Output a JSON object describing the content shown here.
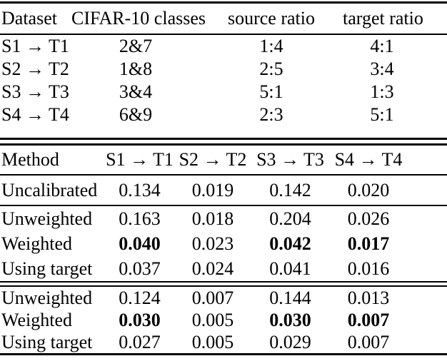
{
  "page": {
    "background_color": "#ffffff",
    "text_color": "#000000"
  },
  "dataset_table": {
    "headers": [
      "Dataset",
      "CIFAR-10 classes",
      "source ratio",
      "target ratio"
    ],
    "rows": [
      [
        "S1 → T1",
        "2&7",
        "1:4",
        "4:1"
      ],
      [
        "S2 → T2",
        "1&8",
        "2:5",
        "3:4"
      ],
      [
        "S3 → T3",
        "3&4",
        "5:1",
        "1:3"
      ],
      [
        "S4 → T4",
        "6&9",
        "2:3",
        "5:1"
      ]
    ]
  },
  "results_table": {
    "headers": [
      "Method",
      "S1 → T1",
      "S2 → T2",
      "S3 → T3",
      "S4 → T4"
    ],
    "group_a": [
      [
        "Uncalibrated",
        "0.134",
        "0.019",
        "0.142",
        "0.020"
      ]
    ],
    "group_b": [
      [
        "Unweighted",
        "0.163",
        "0.018",
        "0.204",
        "0.026"
      ],
      [
        "Weighted",
        "0.040",
        "0.023",
        "0.042",
        "0.017"
      ],
      [
        "Using target",
        "0.037",
        "0.024",
        "0.041",
        "0.016"
      ]
    ],
    "group_c": [
      [
        "Unweighted",
        "0.124",
        "0.007",
        "0.144",
        "0.013"
      ],
      [
        "Weighted",
        "0.030",
        "0.005",
        "0.030",
        "0.007"
      ],
      [
        "Using target",
        "0.027",
        "0.005",
        "0.029",
        "0.007"
      ]
    ]
  }
}
